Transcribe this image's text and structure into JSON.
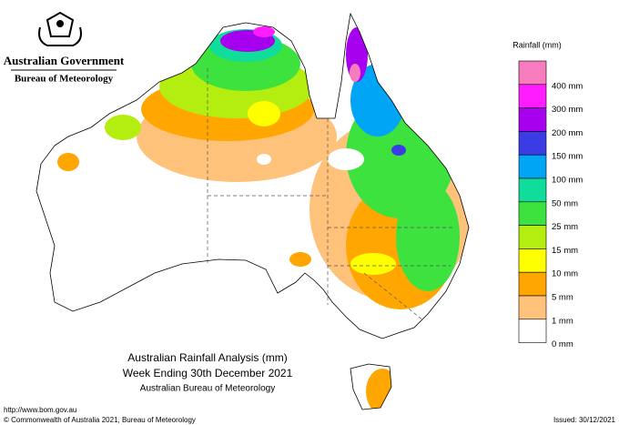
{
  "header": {
    "government": "Australian Government",
    "agency": "Bureau of Meteorology"
  },
  "legend": {
    "title": "Rainfall (mm)",
    "colors": [
      "#f77cbd",
      "#ff1cff",
      "#a600ee",
      "#3c3ce6",
      "#00a6f5",
      "#10dc9c",
      "#3ee23e",
      "#b4ee10",
      "#ffff00",
      "#ffa600",
      "#ffc27a",
      "#ffffff"
    ],
    "labels": [
      "400 mm",
      "300 mm",
      "200 mm",
      "150 mm",
      "100 mm",
      "50 mm",
      "25 mm",
      "15 mm",
      "10 mm",
      "5 mm",
      "1 mm",
      "0 mm"
    ]
  },
  "caption": {
    "title": "Australian Rainfall Analysis (mm)",
    "subtitle": "Week Ending 30th December 2021",
    "source": "Australian Bureau of Meteorology"
  },
  "footer": {
    "url": "http://www.bom.gov.au",
    "copyright": "© Commonwealth of Australia 2021, Bureau of Meteorology",
    "issued": "Issued: 30/12/2021"
  }
}
